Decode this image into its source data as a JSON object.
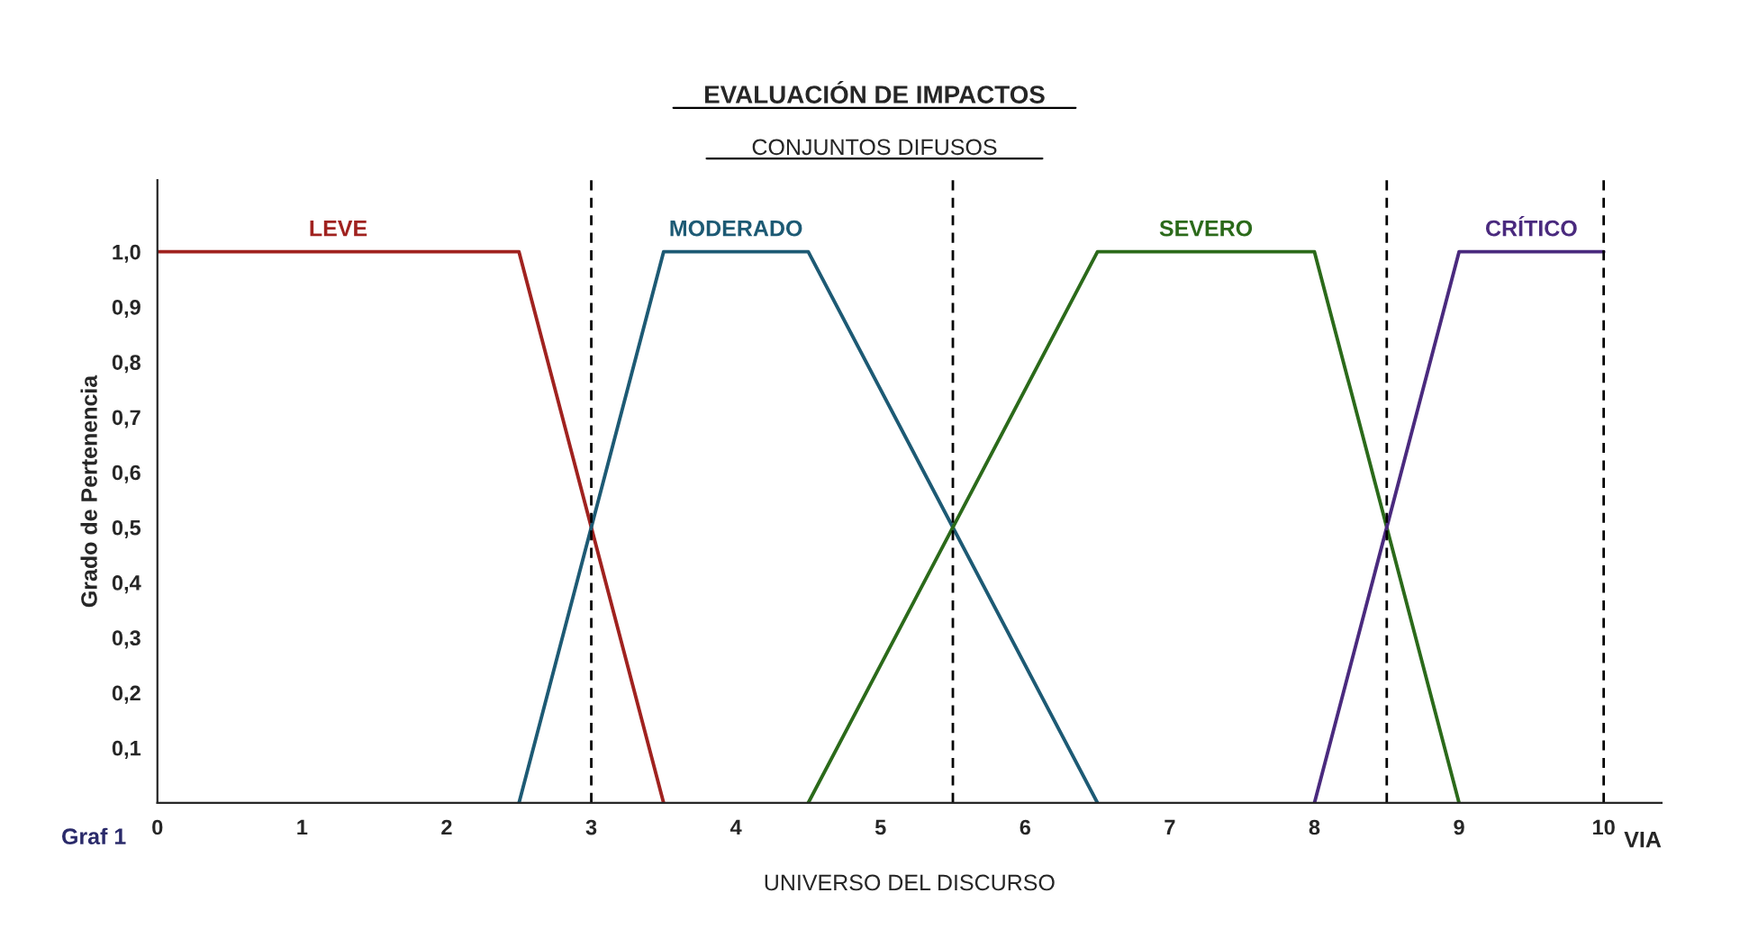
{
  "chart_data": {
    "type": "line",
    "title": "EVALUACIÓN DE IMPACTOS",
    "subtitle": "CONJUNTOS DIFUSOS",
    "xlabel": "UNIVERSO DEL DISCURSO",
    "ylabel": "Grado de Pertenencia",
    "annotations": [
      "VIA",
      "Graf 1"
    ],
    "series": [
      {
        "name": "LEVE",
        "color": "#a0221f",
        "x": [
          0,
          2.5,
          3.5
        ],
        "values": [
          1,
          1,
          0
        ]
      },
      {
        "name": "MODERADO",
        "color": "#1d5a74",
        "x": [
          2.5,
          3.5,
          4.5,
          6.5
        ],
        "values": [
          0,
          1,
          1,
          0
        ]
      },
      {
        "name": "SEVERO",
        "color": "#2b6a1a",
        "x": [
          4.5,
          6.5,
          8,
          9
        ],
        "values": [
          0,
          1,
          1,
          0
        ]
      },
      {
        "name": "CRÍTICO",
        "color": "#4a2a7e",
        "x": [
          8,
          9,
          10
        ],
        "values": [
          0,
          1,
          1
        ]
      }
    ],
    "ref_lines": [
      {
        "axis": "x",
        "value": 3,
        "color": "#000000",
        "line_style": "dashed"
      },
      {
        "axis": "x",
        "value": 5.5,
        "color": "#000000",
        "line_style": "dashed"
      },
      {
        "axis": "x",
        "value": 8.5,
        "color": "#000000",
        "line_style": "dashed"
      },
      {
        "axis": "x",
        "value": 10,
        "color": "#000000",
        "line_style": "dashed"
      }
    ],
    "xlim": [
      0,
      10.4
    ],
    "xticks": [
      0,
      1,
      2,
      3,
      4,
      5,
      6,
      7,
      8,
      9,
      10
    ],
    "ylim": [
      0,
      1.13
    ],
    "yticks": [
      {
        "value": 0.1,
        "label": "0,1"
      },
      {
        "value": 0.2,
        "label": "0,2"
      },
      {
        "value": 0.3,
        "label": "0,3"
      },
      {
        "value": 0.4,
        "label": "0,4"
      },
      {
        "value": 0.5,
        "label": "0,5"
      },
      {
        "value": 0.6,
        "label": "0,6"
      },
      {
        "value": 0.7,
        "label": "0,7"
      },
      {
        "value": 0.8,
        "label": "0,8"
      },
      {
        "value": 0.9,
        "label": "0,9"
      },
      {
        "value": 1,
        "label": "1,0"
      }
    ],
    "grid": false,
    "legend": false,
    "marker": "none",
    "line_style": "solid"
  }
}
